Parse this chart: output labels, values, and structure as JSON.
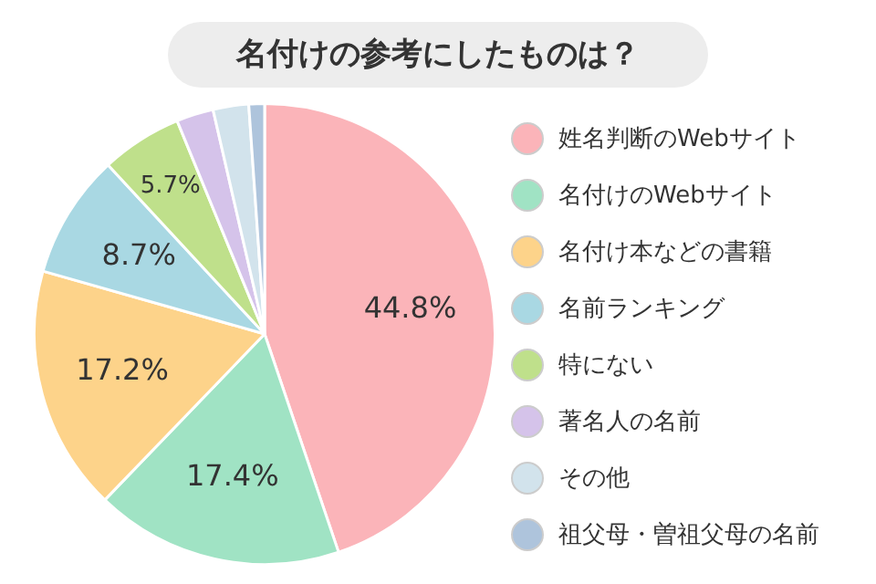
{
  "chart_data": {
    "type": "pie",
    "title": "名付けの参考にしたものは？",
    "categories": [
      "姓名判断のWebサイト",
      "名付けのWebサイト",
      "名付け本などの書籍",
      "名前ランキング",
      "特にない",
      "著名人の名前",
      "その他",
      "祖父母・曽祖父母の名前"
    ],
    "values": [
      44.8,
      17.4,
      17.2,
      8.7,
      5.7,
      2.6,
      2.5,
      1.1
    ],
    "colors": [
      "#fbb4b9",
      "#a0e3c4",
      "#fdd38a",
      "#a9d8e3",
      "#bfe08b",
      "#d5c3ea",
      "#d2e3ec",
      "#aec4dc"
    ],
    "value_labels": [
      "44.8%",
      "17.4%",
      "17.2%",
      "8.7%",
      "5.7%",
      null,
      null,
      null
    ],
    "legend": "right"
  }
}
